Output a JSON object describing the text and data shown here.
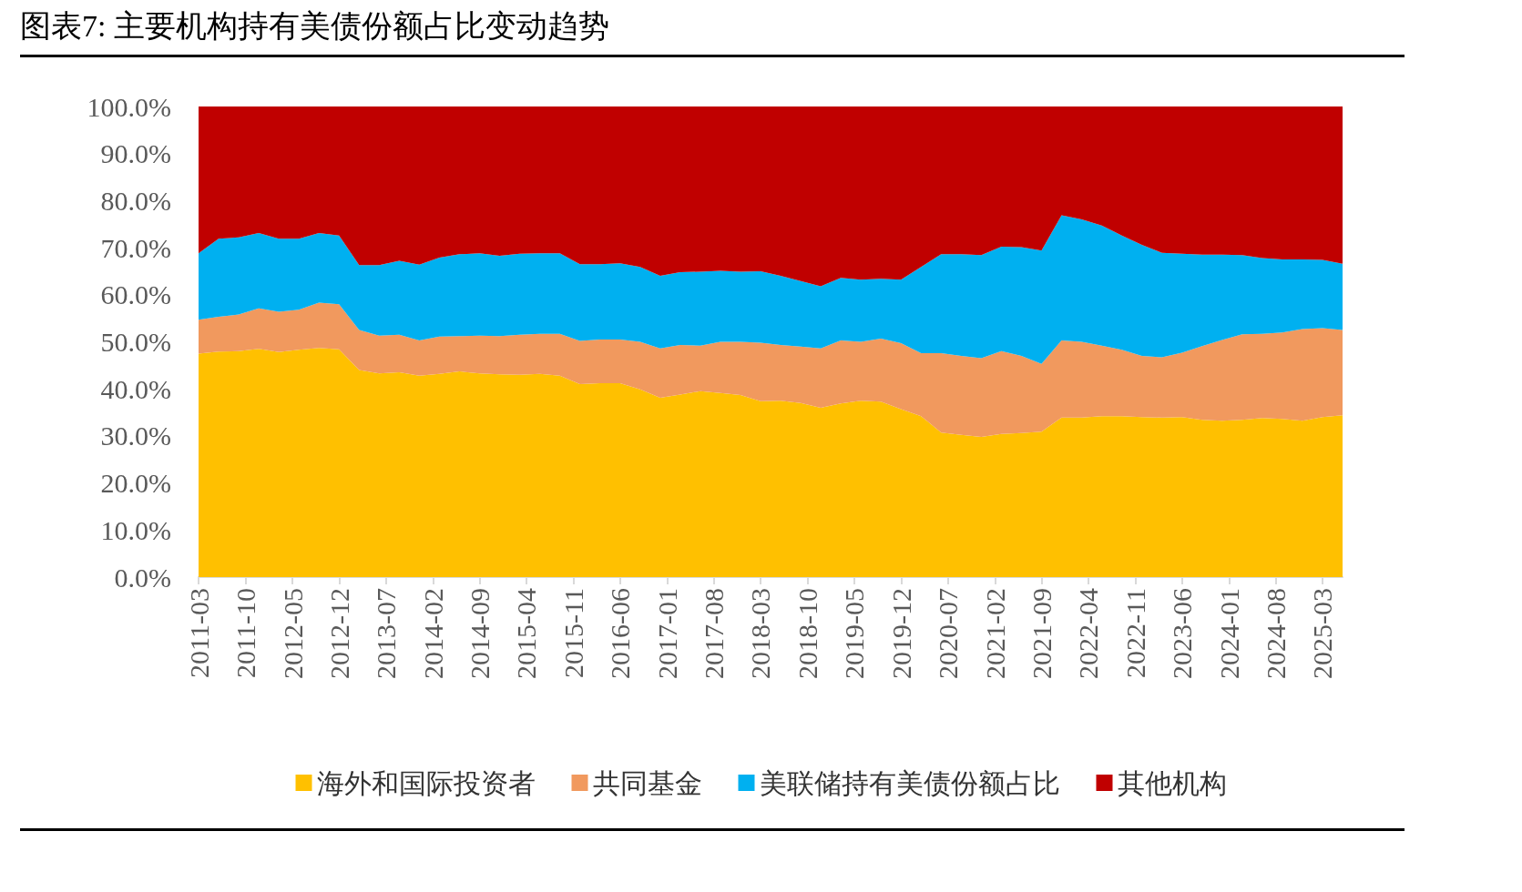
{
  "chart_data": {
    "type": "area",
    "stacked": true,
    "title": "图表7: 主要机构持有美债份额占比变动趋势",
    "x": [
      "2011-03",
      "2011-06",
      "2011-09",
      "2011-12",
      "2012-03",
      "2012-06",
      "2012-09",
      "2012-12",
      "2013-03",
      "2013-06",
      "2013-09",
      "2013-12",
      "2014-03",
      "2014-06",
      "2014-09",
      "2014-12",
      "2015-03",
      "2015-06",
      "2015-09",
      "2015-12",
      "2016-03",
      "2016-06",
      "2016-09",
      "2016-12",
      "2017-03",
      "2017-06",
      "2017-09",
      "2017-12",
      "2018-03",
      "2018-06",
      "2018-09",
      "2018-12",
      "2019-03",
      "2019-06",
      "2019-09",
      "2019-12",
      "2020-03",
      "2020-06",
      "2020-09",
      "2020-12",
      "2021-03",
      "2021-06",
      "2021-09",
      "2021-12",
      "2022-03",
      "2022-06",
      "2022-09",
      "2022-12",
      "2023-03",
      "2023-06",
      "2023-09",
      "2023-12",
      "2024-03",
      "2024-06",
      "2024-09",
      "2024-12",
      "2025-03",
      "2025-06"
    ],
    "series": [
      {
        "name": "海外和国际投资者",
        "color": "#ffc000",
        "values": [
          47.5,
          47.9,
          48.0,
          48.5,
          47.8,
          48.3,
          48.7,
          48.4,
          44.0,
          43.3,
          43.5,
          42.8,
          43.2,
          43.7,
          43.3,
          43.1,
          43.0,
          43.2,
          42.8,
          41.0,
          41.2,
          41.2,
          39.9,
          38.1,
          38.8,
          39.5,
          39.1,
          38.7,
          37.4,
          37.5,
          37.0,
          36.0,
          36.9,
          37.5,
          37.3,
          35.7,
          34.2,
          30.7,
          30.2,
          29.8,
          30.4,
          30.6,
          30.9,
          33.9,
          33.9,
          34.2,
          34.2,
          34.0,
          33.9,
          34.0,
          33.4,
          33.2,
          33.4,
          33.8,
          33.6,
          33.2,
          34.0,
          34.4
        ]
      },
      {
        "name": "共同基金",
        "color": "#f1995e",
        "values": [
          7.2,
          7.4,
          7.8,
          8.6,
          8.6,
          8.5,
          9.6,
          9.6,
          8.5,
          8.0,
          8.0,
          7.5,
          7.9,
          7.5,
          8.0,
          8.1,
          8.5,
          8.5,
          8.9,
          9.2,
          9.3,
          9.3,
          10.1,
          10.5,
          10.5,
          9.7,
          10.9,
          11.3,
          12.4,
          11.8,
          12.0,
          12.6,
          13.4,
          12.5,
          13.4,
          14.0,
          13.4,
          16.9,
          16.8,
          16.7,
          17.6,
          16.4,
          14.4,
          16.4,
          16.1,
          15.0,
          14.1,
          13.0,
          12.8,
          13.7,
          15.7,
          17.2,
          18.2,
          17.9,
          18.4,
          19.5,
          18.9,
          18.1
        ]
      },
      {
        "name": "美联储持有美债份额占比",
        "color": "#00b0f0",
        "values": [
          14.1,
          16.6,
          16.4,
          16.0,
          15.5,
          15.1,
          14.8,
          14.6,
          13.8,
          15.0,
          15.7,
          16.1,
          16.8,
          17.4,
          17.5,
          17.1,
          17.2,
          17.1,
          17.1,
          16.3,
          16.0,
          16.2,
          15.9,
          15.4,
          15.5,
          15.7,
          15.1,
          14.9,
          15.2,
          14.7,
          13.9,
          13.2,
          13.3,
          13.2,
          12.7,
          13.5,
          18.3,
          21.0,
          21.6,
          21.9,
          22.2,
          23.1,
          24.1,
          26.6,
          26.0,
          25.5,
          24.3,
          23.6,
          22.2,
          21.0,
          19.4,
          18.1,
          16.8,
          16.1,
          15.5,
          14.8,
          14.5,
          14.1
        ]
      },
      {
        "name": "其他机构",
        "color": "#c00000",
        "values": [
          31.2,
          28.1,
          27.8,
          26.9,
          28.1,
          28.1,
          26.9,
          27.4,
          33.7,
          33.7,
          32.8,
          33.6,
          32.1,
          31.4,
          31.2,
          31.7,
          31.3,
          31.2,
          31.2,
          33.5,
          33.5,
          33.3,
          34.1,
          36.0,
          35.2,
          35.1,
          34.9,
          35.1,
          35.0,
          36.0,
          37.1,
          38.2,
          36.4,
          36.8,
          36.6,
          36.8,
          34.1,
          31.4,
          31.4,
          31.6,
          29.8,
          29.9,
          30.6,
          23.1,
          24.0,
          25.3,
          27.4,
          29.4,
          31.1,
          31.3,
          31.5,
          31.5,
          31.6,
          32.2,
          32.5,
          32.5,
          32.6,
          33.4
        ]
      }
    ],
    "xlim": [
      "2011-03",
      "2025-06"
    ],
    "xticks": [
      "2011-03",
      "2011-10",
      "2012-05",
      "2012-12",
      "2013-07",
      "2014-02",
      "2014-09",
      "2015-04",
      "2015-11",
      "2016-06",
      "2017-01",
      "2017-08",
      "2018-03",
      "2018-10",
      "2019-05",
      "2019-12",
      "2020-07",
      "2021-02",
      "2021-09",
      "2022-04",
      "2022-11",
      "2023-06",
      "2024-01",
      "2024-08",
      "2025-03"
    ],
    "ylim": [
      0,
      100
    ],
    "yticks": [
      {
        "value": 0,
        "label": "0.0%"
      },
      {
        "value": 10,
        "label": "10.0%"
      },
      {
        "value": 20,
        "label": "20.0%"
      },
      {
        "value": 30,
        "label": "30.0%"
      },
      {
        "value": 40,
        "label": "40.0%"
      },
      {
        "value": 50,
        "label": "50.0%"
      },
      {
        "value": 60,
        "label": "60.0%"
      },
      {
        "value": 70,
        "label": "70.0%"
      },
      {
        "value": 80,
        "label": "80.0%"
      },
      {
        "value": 90,
        "label": "90.0%"
      },
      {
        "value": 100,
        "label": "100.0%"
      }
    ],
    "grid": false,
    "legend": "bottom"
  }
}
